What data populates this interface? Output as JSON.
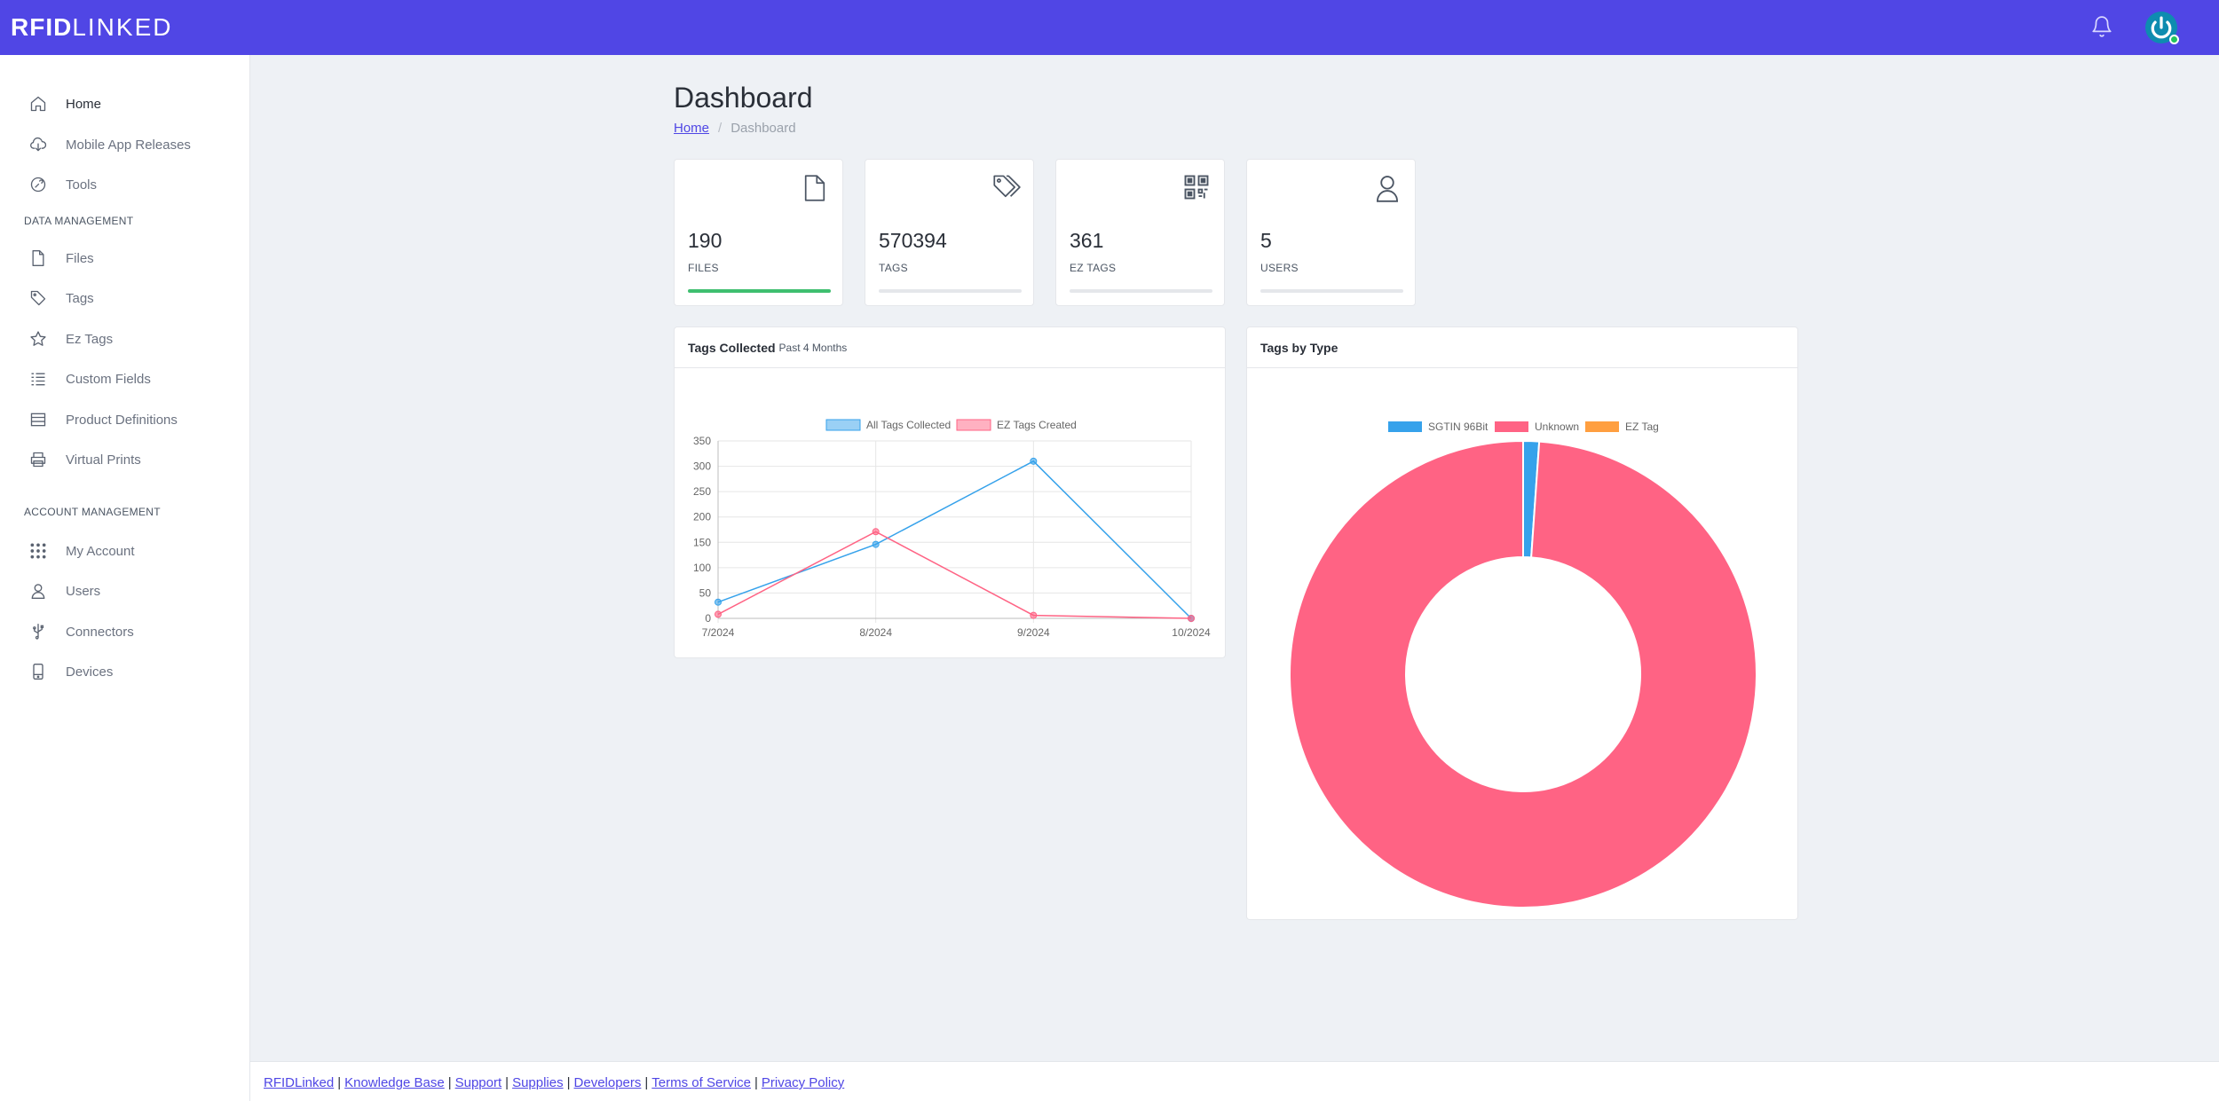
{
  "header": {
    "logo_bold": "RFID",
    "logo_light": "LINKED",
    "colors": {
      "bar": "#5046e5",
      "avatar": "#0e8cb0",
      "online": "#22c55e"
    }
  },
  "sidebar": {
    "items": [
      {
        "label": "Home",
        "icon": "home-icon"
      },
      {
        "label": "Mobile App Releases",
        "icon": "cloud-download-icon"
      },
      {
        "label": "Tools",
        "icon": "tools-icon"
      }
    ],
    "sections": [
      {
        "title": "DATA MANAGEMENT",
        "items": [
          {
            "label": "Files",
            "icon": "file-icon"
          },
          {
            "label": "Tags",
            "icon": "tags-icon"
          },
          {
            "label": "Ez Tags",
            "icon": "star-icon"
          },
          {
            "label": "Custom Fields",
            "icon": "list-icon"
          },
          {
            "label": "Product Definitions",
            "icon": "table-icon"
          },
          {
            "label": "Virtual Prints",
            "icon": "printer-icon"
          }
        ]
      },
      {
        "title": "ACCOUNT MANAGEMENT",
        "items": [
          {
            "label": "My Account",
            "icon": "grid-icon"
          },
          {
            "label": "Users",
            "icon": "user-icon"
          },
          {
            "label": "Connectors",
            "icon": "usb-icon"
          },
          {
            "label": "Devices",
            "icon": "device-icon"
          }
        ]
      }
    ]
  },
  "main": {
    "title": "Dashboard",
    "breadcrumb": {
      "home": "Home",
      "current": "Dashboard"
    },
    "stats": [
      {
        "value": "190",
        "label": "FILES",
        "icon": "file-icon",
        "progress": 1.0
      },
      {
        "value": "570394",
        "label": "TAGS",
        "icon": "tags-icon",
        "progress": 0
      },
      {
        "value": "361",
        "label": "EZ TAGS",
        "icon": "qr-code-icon",
        "progress": 0
      },
      {
        "value": "5",
        "label": "USERS",
        "icon": "user-icon",
        "progress": 0
      }
    ],
    "tags_collected": {
      "title": "Tags Collected",
      "subtitle": "Past 4 Months"
    },
    "tags_by_type": {
      "title": "Tags by Type"
    }
  },
  "chart_data": [
    {
      "type": "line",
      "categories": [
        "7/2024",
        "8/2024",
        "9/2024",
        "10/2024"
      ],
      "series": [
        {
          "name": "All Tags Collected",
          "values": [
            32,
            146,
            310,
            0
          ],
          "color": "#36a2eb"
        },
        {
          "name": "EZ Tags Created",
          "values": [
            8,
            171,
            6,
            0
          ],
          "color": "#ff6384"
        }
      ],
      "ylim": [
        0,
        350
      ],
      "yticks": [
        0,
        50,
        100,
        150,
        200,
        250,
        300,
        350
      ],
      "grid": true,
      "legend": "top-center"
    },
    {
      "type": "pie",
      "donut": true,
      "labels": [
        "SGTIN 96Bit",
        "Unknown",
        "EZ Tag"
      ],
      "values": [
        1.1,
        98.9,
        0
      ],
      "colors": [
        "#36a2eb",
        "#ff6384",
        "#ff9f40"
      ],
      "legend": "top-center"
    }
  ],
  "footer": {
    "links": [
      "RFIDLinked",
      "Knowledge Base",
      "Support",
      "Supplies",
      "Developers",
      "Terms of Service",
      "Privacy Policy"
    ]
  }
}
